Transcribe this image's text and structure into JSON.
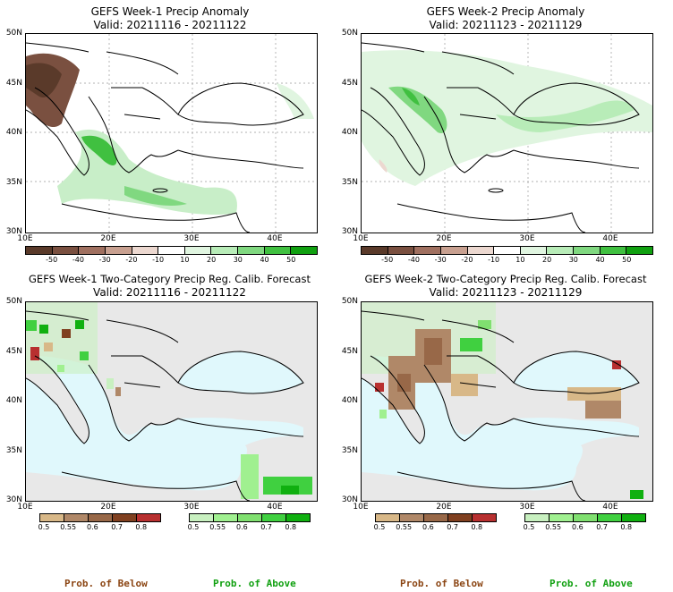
{
  "panels": [
    {
      "title": "GEFS Week-1 Precip Anomaly",
      "valid": "Valid: 20211116 - 20211122"
    },
    {
      "title": "GEFS Week-2 Precip Anomaly",
      "valid": "Valid: 20211123 - 20211129"
    },
    {
      "title": "GEFS Week-1 Two-Category Precip Reg. Calib. Forecast",
      "valid": "Valid: 20211116 - 20211122"
    },
    {
      "title": "GEFS Week-2 Two-Category Precip Reg. Calib. Forecast",
      "valid": "Valid: 20211123 - 20211129"
    }
  ],
  "lat_labels": [
    "50N",
    "45N",
    "40N",
    "35N",
    "30N"
  ],
  "lon_labels": [
    "10E",
    "20E",
    "30E",
    "40E"
  ],
  "anom_scale": [
    "-50",
    "-40",
    "-30",
    "-20",
    "-10",
    "10",
    "20",
    "30",
    "40",
    "50"
  ],
  "anom_colors": [
    "#5a3a2a",
    "#7a5040",
    "#a07060",
    "#c8a090",
    "#ecd8d0",
    "#ffffff",
    "#e0f5e0",
    "#b8ecb8",
    "#80d880",
    "#40c040",
    "#10a010"
  ],
  "prob_scale": [
    "0.5",
    "0.55",
    "0.6",
    "0.7",
    "0.8"
  ],
  "below_colors": [
    "#d8b888",
    "#b08868",
    "#986848",
    "#804020",
    "#b83030"
  ],
  "above_colors": [
    "#c8f0c0",
    "#a0f090",
    "#80e070",
    "#40d040",
    "#10b010"
  ],
  "prob_below_label": "Prob. of Below",
  "prob_above_label": "Prob. of Above",
  "colors": {
    "sea": "#e0f8fc",
    "land_masked": "#e8e8e8",
    "below_text": "#8b4513",
    "above_text": "#10a010"
  }
}
